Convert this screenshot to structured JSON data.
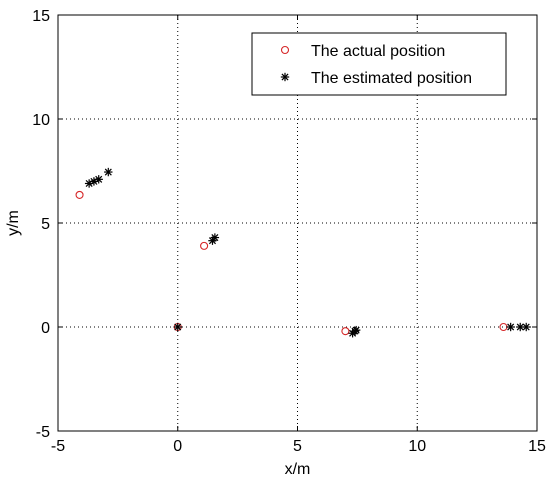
{
  "chart_data": {
    "type": "scatter",
    "title": "",
    "xlabel": "x/m",
    "ylabel": "y/m",
    "xlim": [
      -5,
      15
    ],
    "ylim": [
      -5,
      15
    ],
    "xticks": [
      -5,
      0,
      5,
      10,
      15
    ],
    "yticks": [
      -5,
      0,
      5,
      10,
      15
    ],
    "xtick_labels": [
      "-5",
      "0",
      "5",
      "10",
      "15"
    ],
    "ytick_labels": [
      "-5",
      "0",
      "5",
      "10",
      "15"
    ],
    "grid": true,
    "legend_position": "top-right",
    "series": [
      {
        "name": "The actual position",
        "marker": "circle",
        "color": "#d62728",
        "points": [
          {
            "x": -4.1,
            "y": 6.35
          },
          {
            "x": 1.1,
            "y": 3.9
          },
          {
            "x": 0.0,
            "y": 0.0
          },
          {
            "x": 7.0,
            "y": -0.2
          },
          {
            "x": 13.6,
            "y": 0.0
          }
        ]
      },
      {
        "name": "The estimated position",
        "marker": "asterisk",
        "color": "#000000",
        "points": [
          {
            "x": -3.7,
            "y": 6.9
          },
          {
            "x": -3.5,
            "y": 7.0
          },
          {
            "x": -3.3,
            "y": 7.1
          },
          {
            "x": -2.9,
            "y": 7.45
          },
          {
            "x": 1.45,
            "y": 4.15
          },
          {
            "x": 1.55,
            "y": 4.3
          },
          {
            "x": 0.0,
            "y": 0.0
          },
          {
            "x": 7.3,
            "y": -0.3
          },
          {
            "x": 7.4,
            "y": -0.2
          },
          {
            "x": 7.45,
            "y": -0.15
          },
          {
            "x": 13.9,
            "y": 0.0
          },
          {
            "x": 14.3,
            "y": 0.0
          },
          {
            "x": 14.55,
            "y": 0.0
          }
        ]
      }
    ]
  }
}
